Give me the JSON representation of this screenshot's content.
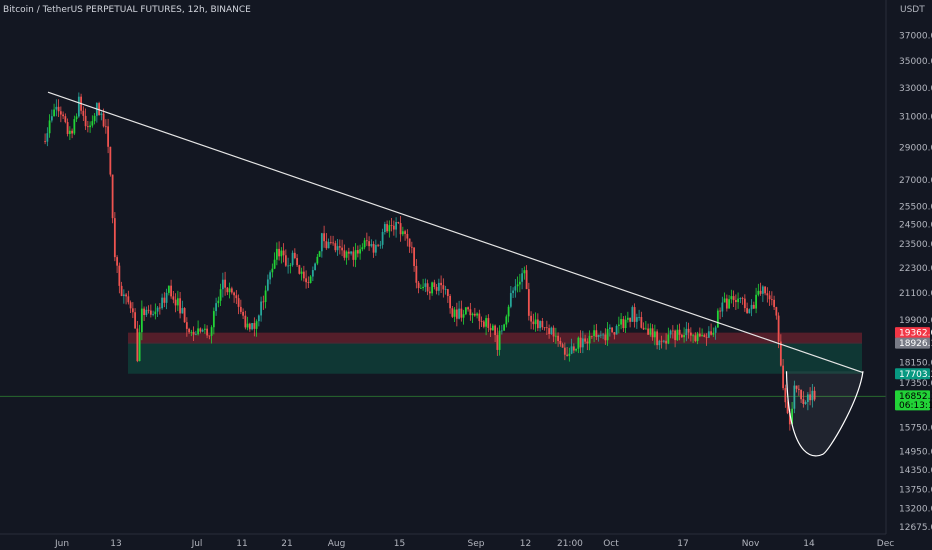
{
  "header": {
    "title": "Bitcoin / TetherUS PERPETUAL FUTURES, 12h, BINANCE",
    "currency": "USDT"
  },
  "colors": {
    "background": "#131722",
    "up": "#26a69a",
    "up_bright": "#22d337",
    "down": "#ef5350",
    "trendline": "#e6e6e6",
    "resistance_zone": "#5c1f2b",
    "support_zone": "#0f3b36",
    "current_price": "#2e7d32"
  },
  "chart_data": {
    "type": "candlestick",
    "y_axis": {
      "ticks": [
        37000.0,
        35000.0,
        33000.0,
        31000.0,
        29000.0,
        27000.0,
        25500.0,
        24500.0,
        23500.0,
        22300.0,
        21100.0,
        19900.0,
        18150.0,
        17350.0,
        15750.0,
        14950.0,
        14350.0,
        13750.0,
        13200.0,
        12675.0
      ],
      "tick_labels": [
        "37000.0",
        "35000.0",
        "33000.0",
        "31000.0",
        "29000.0",
        "27000.0",
        "25500.0",
        "24500.0",
        "23500.0",
        "22300.0",
        "21100.0",
        "19900.0",
        "18150.0",
        "17350.0",
        "15750.0",
        "14950.0",
        "14350.0",
        "13750.0",
        "13200.0",
        "12675.0"
      ],
      "scale": "log"
    },
    "x_axis": {
      "ticks": [
        {
          "date": "2022-06-01",
          "label": "Jun"
        },
        {
          "date": "2022-06-13",
          "label": "13"
        },
        {
          "date": "2022-07-01",
          "label": "Jul"
        },
        {
          "date": "2022-07-11",
          "label": "11"
        },
        {
          "date": "2022-07-21",
          "label": "21"
        },
        {
          "date": "2022-08-01",
          "label": "Aug"
        },
        {
          "date": "2022-08-15",
          "label": "15"
        },
        {
          "date": "2022-09-01",
          "label": "Sep"
        },
        {
          "date": "2022-09-12",
          "label": "12"
        },
        {
          "date": "2022-09-21T21:00",
          "label": "21:00"
        },
        {
          "date": "2022-10-01",
          "label": "Oct"
        },
        {
          "date": "2022-10-17",
          "label": "17"
        },
        {
          "date": "2022-11-01",
          "label": "Nov"
        },
        {
          "date": "2022-11-14",
          "label": "14"
        },
        {
          "date": "2022-12-01",
          "label": "Dec"
        }
      ]
    },
    "price_path": [
      [
        "2022-05-28",
        29400
      ],
      [
        "2022-05-31",
        31700
      ],
      [
        "2022-06-03",
        29700
      ],
      [
        "2022-06-05",
        32000
      ],
      [
        "2022-06-06",
        31200
      ],
      [
        "2022-06-07",
        30000
      ],
      [
        "2022-06-09",
        31600
      ],
      [
        "2022-06-11",
        30000
      ],
      [
        "2022-06-12",
        27500
      ],
      [
        "2022-06-13",
        23000
      ],
      [
        "2022-06-14",
        21600
      ],
      [
        "2022-06-15",
        20800
      ],
      [
        "2022-06-17",
        20500
      ],
      [
        "2022-06-18",
        18400
      ],
      [
        "2022-06-19",
        20200
      ],
      [
        "2022-06-22",
        20000
      ],
      [
        "2022-06-25",
        21300
      ],
      [
        "2022-06-28",
        20300
      ],
      [
        "2022-06-30",
        19300
      ],
      [
        "2022-07-04",
        19500
      ],
      [
        "2022-07-07",
        21500
      ],
      [
        "2022-07-10",
        20700
      ],
      [
        "2022-07-13",
        19300
      ],
      [
        "2022-07-16",
        20800
      ],
      [
        "2022-07-19",
        23300
      ],
      [
        "2022-07-21",
        22600
      ],
      [
        "2022-07-23",
        22800
      ],
      [
        "2022-07-26",
        21300
      ],
      [
        "2022-07-29",
        23800
      ],
      [
        "2022-08-01",
        23200
      ],
      [
        "2022-08-04",
        22800
      ],
      [
        "2022-08-08",
        23600
      ],
      [
        "2022-08-10",
        23200
      ],
      [
        "2022-08-12",
        24300
      ],
      [
        "2022-08-14",
        24500
      ],
      [
        "2022-08-16",
        24000
      ],
      [
        "2022-08-18",
        23300
      ],
      [
        "2022-08-19",
        21300
      ],
      [
        "2022-08-21",
        21300
      ],
      [
        "2022-08-24",
        21500
      ],
      [
        "2022-08-26",
        21100
      ],
      [
        "2022-08-27",
        20200
      ],
      [
        "2022-08-30",
        20300
      ],
      [
        "2022-09-02",
        19900
      ],
      [
        "2022-09-05",
        19700
      ],
      [
        "2022-09-06",
        18900
      ],
      [
        "2022-09-09",
        21000
      ],
      [
        "2022-09-12",
        22200
      ],
      [
        "2022-09-13",
        20200
      ],
      [
        "2022-09-15",
        19800
      ],
      [
        "2022-09-19",
        19400
      ],
      [
        "2022-09-21",
        18600
      ],
      [
        "2022-09-24",
        18900
      ],
      [
        "2022-09-27",
        19200
      ],
      [
        "2022-09-30",
        19300
      ],
      [
        "2022-10-03",
        19600
      ],
      [
        "2022-10-06",
        20200
      ],
      [
        "2022-10-09",
        19500
      ],
      [
        "2022-10-12",
        19000
      ],
      [
        "2022-10-15",
        19300
      ],
      [
        "2022-10-18",
        19300
      ],
      [
        "2022-10-21",
        19100
      ],
      [
        "2022-10-24",
        19500
      ],
      [
        "2022-10-26",
        20600
      ],
      [
        "2022-10-29",
        20800
      ],
      [
        "2022-11-01",
        20400
      ],
      [
        "2022-11-04",
        21200
      ],
      [
        "2022-11-06",
        20800
      ],
      [
        "2022-11-07",
        20200
      ],
      [
        "2022-11-08",
        18000
      ],
      [
        "2022-11-09",
        16600
      ],
      [
        "2022-11-10",
        15900
      ],
      [
        "2022-11-11",
        17300
      ],
      [
        "2022-11-12",
        16900
      ],
      [
        "2022-11-13",
        16600
      ],
      [
        "2022-11-14",
        16800
      ],
      [
        "2022-11-15",
        16852.3
      ]
    ],
    "resistance_zone": {
      "from": 18926.1,
      "to": 19362.0
    },
    "support_zone": {
      "from": 17703.3,
      "to": 18926.1
    },
    "trendline": [
      {
        "date": "2022-06-01",
        "price": 32700
      },
      {
        "date": "2022-11-26",
        "price": 17750
      }
    ],
    "cup_curve": {
      "x_start": "2022-11-09",
      "x_end": "2022-11-26",
      "bottom_date": "2022-11-17",
      "bottom_price": 14850,
      "rim_price": 17800
    },
    "price_tags": [
      {
        "label": "19362.0",
        "value": 19362.0,
        "color": "#f23645"
      },
      {
        "label": "18926.1",
        "value": 18926.1,
        "color": "#787b86"
      },
      {
        "label": "17703.3",
        "value": 17703.3,
        "color": "#089981"
      },
      {
        "label": "16852.3",
        "value": 16852.3,
        "color": "#22d337",
        "sub": "06:13:18"
      }
    ]
  }
}
